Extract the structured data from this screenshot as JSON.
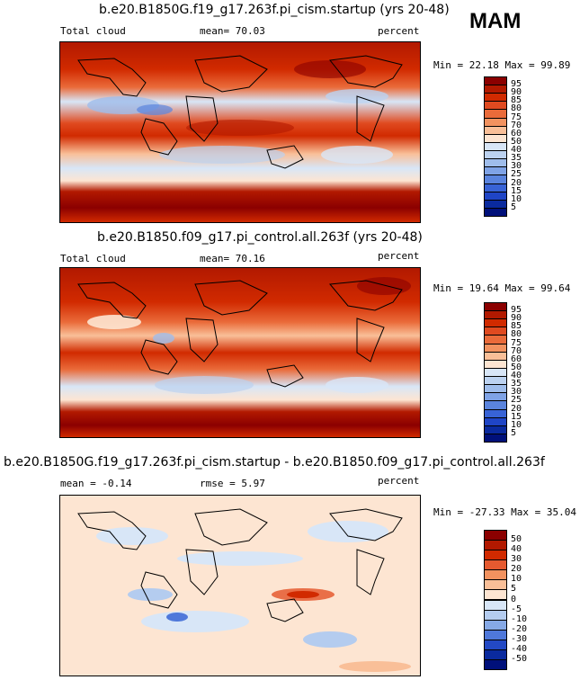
{
  "season": "MAM",
  "chart_data": [
    {
      "type": "heatmap",
      "title": "b.e20.B1850G.f19_g17.263f.pi_cism.startup (yrs 20-48)",
      "left_label": "Total cloud",
      "stat1": "mean=  70.03",
      "units": "percent",
      "minmax": "Min =  22.18 Max =  99.89",
      "min": 22.18,
      "max": 99.89,
      "mean": 70.03,
      "colorbar_levels": [
        "95",
        "90",
        "85",
        "80",
        "75",
        "70",
        "60",
        "50",
        "40",
        "35",
        "30",
        "25",
        "20",
        "15",
        "10",
        "5"
      ],
      "colorbar_colors": [
        "#8b0000",
        "#b21900",
        "#d12a00",
        "#e04a20",
        "#ea6b3a",
        "#f2925f",
        "#f9bf98",
        "#fde5d2",
        "#d8e6f7",
        "#bcd2f0",
        "#9fbdeb",
        "#7fa3e6",
        "#5a84de",
        "#3863d6",
        "#1f45c6",
        "#0a2a9e",
        "#00107a"
      ]
    },
    {
      "type": "heatmap",
      "title": "b.e20.B1850.f09_g17.pi_control.all.263f (yrs 20-48)",
      "left_label": "Total cloud",
      "stat1": "mean=  70.16",
      "units": "percent",
      "minmax": "Min =  19.64 Max =  99.64",
      "min": 19.64,
      "max": 99.64,
      "mean": 70.16,
      "colorbar_levels": [
        "95",
        "90",
        "85",
        "80",
        "75",
        "70",
        "60",
        "50",
        "40",
        "35",
        "30",
        "25",
        "20",
        "15",
        "10",
        "5"
      ],
      "colorbar_colors": [
        "#8b0000",
        "#b21900",
        "#d12a00",
        "#e04a20",
        "#ea6b3a",
        "#f2925f",
        "#f9bf98",
        "#fde5d2",
        "#d8e6f7",
        "#bcd2f0",
        "#9fbdeb",
        "#7fa3e6",
        "#5a84de",
        "#3863d6",
        "#1f45c6",
        "#0a2a9e",
        "#00107a"
      ]
    },
    {
      "type": "heatmap",
      "title": "b.e20.B1850G.f19_g17.263f.pi_cism.startup - b.e20.B1850.f09_g17.pi_control.all.263f",
      "left_label": "mean =  -0.14",
      "stat1": "rmse =   5.97",
      "units": "percent",
      "minmax": "Min = -27.33 Max =  35.04",
      "min": -27.33,
      "max": 35.04,
      "mean": -0.14,
      "rmse": 5.97,
      "colorbar_levels": [
        "50",
        "40",
        "30",
        "20",
        "10",
        "5",
        "0",
        "-5",
        "-10",
        "-20",
        "-30",
        "-40",
        "-50"
      ],
      "colorbar_colors": [
        "#8b0000",
        "#b21900",
        "#d12a00",
        "#e55a30",
        "#f2925f",
        "#f9bf98",
        "#fde5d2",
        "#d8e6f7",
        "#b4ccef",
        "#86a9e6",
        "#4f78da",
        "#2349c4",
        "#0a2a9e",
        "#00107a"
      ]
    }
  ]
}
